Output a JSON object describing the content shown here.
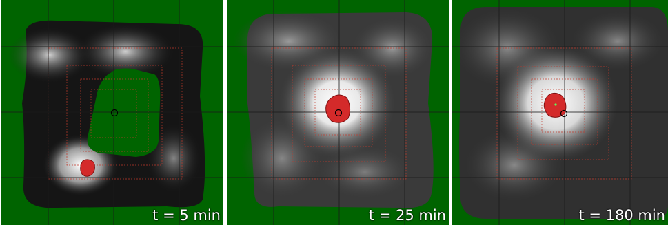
{
  "panels": [
    {
      "id": "p1",
      "caption": "t = 5 min"
    },
    {
      "id": "p2",
      "caption": "t = 25 min"
    },
    {
      "id": "p3",
      "caption": "t = 180 min"
    }
  ],
  "colors": {
    "background": "#006400",
    "grid": "#1a1a1a",
    "region_outline": "#c0392b",
    "blob": "#d42a2a",
    "marker": "#000000"
  }
}
